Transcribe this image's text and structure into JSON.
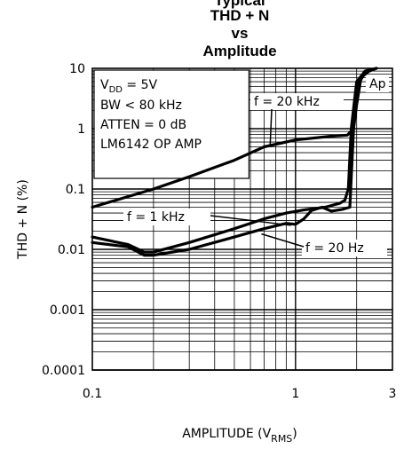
{
  "title_lines": [
    "Typical",
    "THD + N",
    "vs",
    "Amplitude"
  ],
  "colors": {
    "ink": "#000000",
    "background": "#ffffff"
  },
  "chart_data": {
    "type": "line",
    "title": "THD + N vs Amplitude",
    "xlabel": "AMPLITUDE (V",
    "xlabel_sub": "RMS",
    "xlabel_end": ")",
    "ylabel": "THD + N (%)",
    "x_scale": "log",
    "y_scale": "log",
    "xlim": [
      0.1,
      3
    ],
    "ylim": [
      0.0001,
      10
    ],
    "grid": true,
    "x_tick_labels": [
      {
        "value": 0.1,
        "label": "0.1"
      },
      {
        "value": 1,
        "label": "1"
      },
      {
        "value": 3,
        "label": "3"
      }
    ],
    "y_tick_labels": [
      {
        "value": 10,
        "label": "10"
      },
      {
        "value": 1,
        "label": "1"
      },
      {
        "value": 0.1,
        "label": "0.1"
      },
      {
        "value": 0.01,
        "label": "0.01"
      },
      {
        "value": 0.001,
        "label": "0.001"
      },
      {
        "value": 0.0001,
        "label": "0.0001"
      }
    ],
    "conditions": [
      "V",
      "BW < 80 kHz",
      "ATTEN = 0 dB",
      "LM6142 OP AMP"
    ],
    "condition_vdd": {
      "main": "V",
      "sub": "DD",
      "rest": " = 5V"
    },
    "series": [
      {
        "name": "f = 20 kHz",
        "x": [
          0.1,
          0.15,
          0.2,
          0.3,
          0.5,
          0.7,
          1.0,
          1.5,
          1.8,
          1.93,
          2.0,
          2.1,
          2.3,
          2.5
        ],
        "y": [
          0.05,
          0.075,
          0.1,
          0.16,
          0.3,
          0.5,
          0.65,
          0.75,
          0.78,
          1.0,
          2.5,
          7.0,
          9.0,
          10.0
        ]
      },
      {
        "name": "f = 1 kHz",
        "x": [
          0.1,
          0.15,
          0.18,
          0.2,
          0.3,
          0.5,
          0.7,
          0.9,
          1.1,
          1.4,
          1.65,
          1.75,
          1.82,
          1.88,
          2.0,
          2.2,
          2.5
        ],
        "y": [
          0.016,
          0.012,
          0.009,
          0.009,
          0.013,
          0.022,
          0.032,
          0.04,
          0.045,
          0.05,
          0.058,
          0.065,
          0.1,
          1.0,
          6.0,
          9.0,
          10.0
        ]
      },
      {
        "name": "f = 20 Hz",
        "x": [
          0.1,
          0.15,
          0.18,
          0.2,
          0.3,
          0.5,
          0.7,
          0.9,
          1.0,
          1.1,
          1.2,
          1.35,
          1.5,
          1.7,
          1.85,
          1.93,
          2.0,
          2.2,
          2.5
        ],
        "y": [
          0.013,
          0.011,
          0.008,
          0.008,
          0.01,
          0.016,
          0.022,
          0.027,
          0.026,
          0.032,
          0.044,
          0.05,
          0.043,
          0.046,
          0.05,
          1.0,
          5.0,
          8.5,
          10.0
        ]
      }
    ],
    "annotations": [
      "f = 20 kHz",
      "f = 1 kHz",
      "f = 20 Hz",
      "Ap"
    ]
  }
}
